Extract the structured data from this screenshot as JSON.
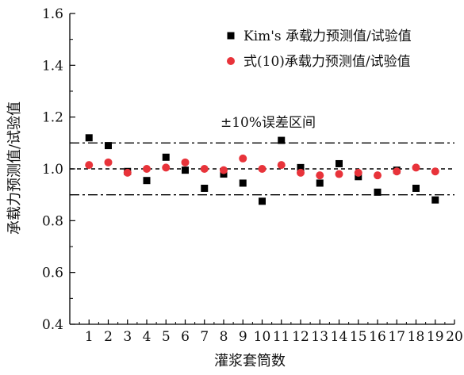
{
  "chart_data": {
    "type": "scatter",
    "xlabel": "灌浆套筒数",
    "ylabel": "承载力预测值/试验值",
    "xlim": [
      0,
      20
    ],
    "ylim": [
      0.4,
      1.6
    ],
    "x_ticks": [
      "1",
      "2",
      "3",
      "4",
      "5",
      "6",
      "7",
      "8",
      "9",
      "10",
      "11",
      "12",
      "13",
      "14",
      "15",
      "16",
      "17",
      "18",
      "19",
      "20"
    ],
    "y_ticks": [
      "0.4",
      "0.6",
      "0.8",
      "1.0",
      "1.2",
      "1.4",
      "1.6"
    ],
    "x_tick_values": [
      1,
      2,
      3,
      4,
      5,
      6,
      7,
      8,
      9,
      10,
      11,
      12,
      13,
      14,
      15,
      16,
      17,
      18,
      19,
      20
    ],
    "y_tick_values": [
      0.4,
      0.6,
      0.8,
      1.0,
      1.2,
      1.4,
      1.6
    ],
    "grid": false,
    "legend_position": "top-right",
    "series": [
      {
        "name": "Kim's 承载力预测值/试验值",
        "marker": "square",
        "color": "#000000",
        "x": [
          1,
          2,
          3,
          4,
          5,
          6,
          7,
          8,
          9,
          10,
          11,
          12,
          13,
          14,
          15,
          16,
          17,
          18,
          19
        ],
        "values": [
          1.12,
          1.09,
          0.99,
          0.955,
          1.045,
          0.995,
          0.925,
          0.98,
          0.945,
          0.875,
          1.11,
          1.005,
          0.945,
          1.02,
          0.97,
          0.91,
          0.995,
          0.925,
          0.88
        ]
      },
      {
        "name": "式(10)承载力预测值/试验值",
        "marker": "circle",
        "color": "#e8333a",
        "x": [
          1,
          2,
          3,
          4,
          5,
          6,
          7,
          8,
          9,
          10,
          11,
          12,
          13,
          14,
          15,
          16,
          17,
          18,
          19
        ],
        "values": [
          1.015,
          1.025,
          0.985,
          1.0,
          1.005,
          1.025,
          1.0,
          0.995,
          1.04,
          1.0,
          1.015,
          0.985,
          0.975,
          0.98,
          0.985,
          0.975,
          0.99,
          1.005,
          0.99
        ]
      }
    ],
    "reference_lines": [
      {
        "y": 1.1,
        "style": "dash-dot"
      },
      {
        "y": 1.0,
        "style": "dashed"
      },
      {
        "y": 0.9,
        "style": "dash-dot"
      }
    ],
    "annotation": "±10%误差区间"
  }
}
